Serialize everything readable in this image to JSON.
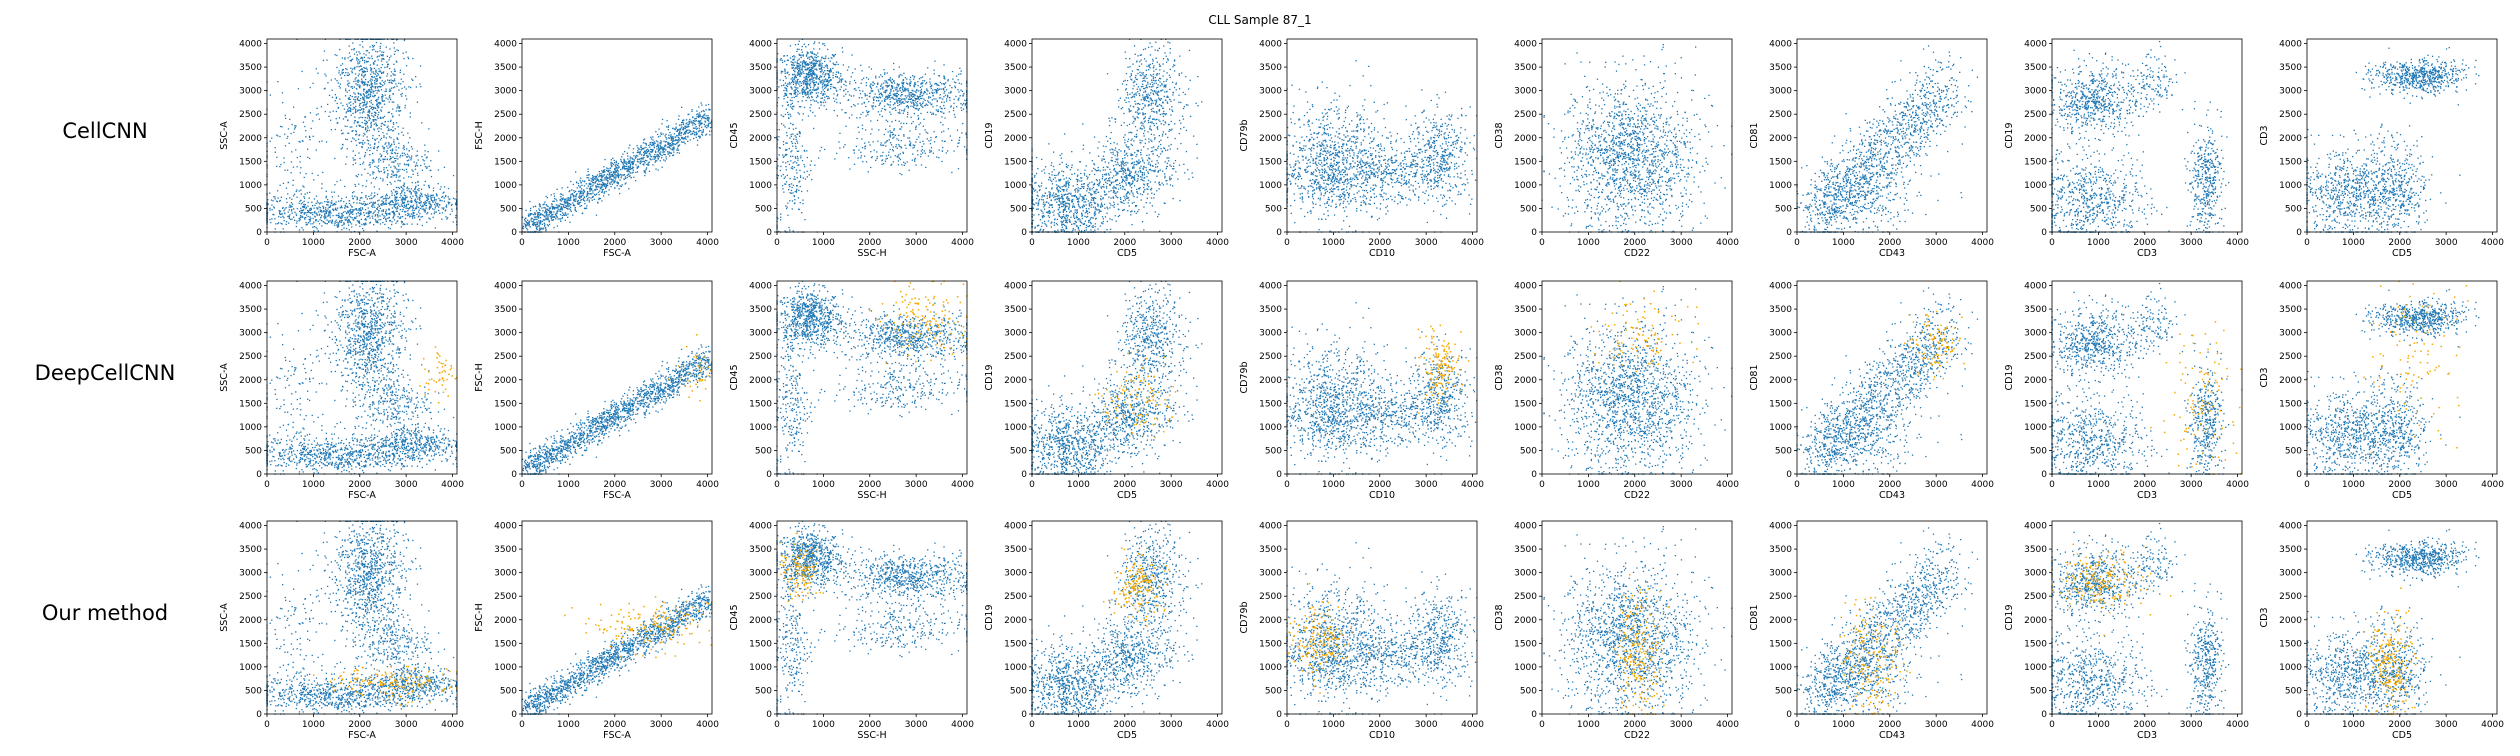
{
  "figure": {
    "title": "CLL Sample 87_1",
    "row_labels": [
      "CellCNN",
      "DeepCellCNN",
      "Our method"
    ]
  },
  "colors": {
    "all_cells": "#1f77b4",
    "selected_cells": "#f5a800",
    "axes": "#000000",
    "background": "#ffffff"
  },
  "chart_data": {
    "type": "scatter",
    "grid": false,
    "legend": "none",
    "xlim": [
      0,
      4096
    ],
    "ylim": [
      0,
      4096
    ],
    "tick_labels": [
      "0",
      "500",
      "1000",
      "1500",
      "2000",
      "2500",
      "3000",
      "3500",
      "4000"
    ],
    "x_tick_labels": [
      "0",
      "1000",
      "2000",
      "3000",
      "4000"
    ],
    "panels": [
      {
        "xlabel": "FSC-A",
        "ylabel": "SSC-A"
      },
      {
        "xlabel": "FSC-A",
        "ylabel": "FSC-H"
      },
      {
        "xlabel": "SSC-H",
        "ylabel": "CD45"
      },
      {
        "xlabel": "CD5",
        "ylabel": "CD19"
      },
      {
        "xlabel": "CD10",
        "ylabel": "CD79b"
      },
      {
        "xlabel": "CD22",
        "ylabel": "CD38"
      },
      {
        "xlabel": "CD43",
        "ylabel": "CD81"
      },
      {
        "xlabel": "CD3",
        "ylabel": "CD19"
      },
      {
        "xlabel": "CD5",
        "ylabel": "CD3"
      }
    ],
    "populations": [
      [
        {
          "x": 2200,
          "y": 2900,
          "sx": 400,
          "sy": 700,
          "n": 900
        },
        {
          "x": 1500,
          "y": 400,
          "sx": 900,
          "sy": 180,
          "n": 700
        },
        {
          "x": 3200,
          "y": 650,
          "sx": 500,
          "sy": 200,
          "n": 400
        },
        {
          "x": 2700,
          "y": 1500,
          "sx": 400,
          "sy": 300,
          "n": 250
        },
        {
          "x": 500,
          "y": 1500,
          "sx": 400,
          "sy": 800,
          "n": 150
        }
      ],
      [
        {
          "line": true,
          "x0": 100,
          "y0": 100,
          "x1": 4000,
          "y1": 2400,
          "spread": 160,
          "n": 1500
        }
      ],
      [
        {
          "x": 700,
          "y": 3300,
          "sx": 350,
          "sy": 300,
          "n": 700
        },
        {
          "x": 2800,
          "y": 2900,
          "sx": 700,
          "sy": 250,
          "n": 700
        },
        {
          "x": 2600,
          "y": 1800,
          "sx": 700,
          "sy": 250,
          "n": 250
        },
        {
          "x": 300,
          "y": 1500,
          "sx": 200,
          "sy": 900,
          "n": 250
        }
      ],
      [
        {
          "x": 800,
          "y": 600,
          "sx": 600,
          "sy": 450,
          "n": 900
        },
        {
          "x": 2200,
          "y": 1300,
          "sx": 450,
          "sy": 400,
          "n": 500
        },
        {
          "x": 2600,
          "y": 2900,
          "sx": 350,
          "sy": 500,
          "n": 500
        }
      ],
      [
        {
          "x": 1000,
          "y": 1400,
          "sx": 600,
          "sy": 600,
          "n": 1000
        },
        {
          "x": 3300,
          "y": 1600,
          "sx": 350,
          "sy": 500,
          "n": 450
        },
        {
          "x": 2200,
          "y": 1200,
          "sx": 500,
          "sy": 300,
          "n": 300
        }
      ],
      [
        {
          "x": 1900,
          "y": 1600,
          "sx": 700,
          "sy": 800,
          "n": 1500
        }
      ],
      [
        {
          "line": true,
          "x0": 300,
          "y0": 300,
          "x1": 3300,
          "y1": 3000,
          "spread": 420,
          "n": 1200
        },
        {
          "x": 1400,
          "y": 700,
          "sx": 600,
          "sy": 400,
          "n": 300
        }
      ],
      [
        {
          "x": 900,
          "y": 2800,
          "sx": 500,
          "sy": 350,
          "n": 600
        },
        {
          "x": 800,
          "y": 700,
          "sx": 600,
          "sy": 500,
          "n": 700
        },
        {
          "x": 3300,
          "y": 1100,
          "sx": 180,
          "sy": 600,
          "n": 400
        },
        {
          "x": 2200,
          "y": 3200,
          "sx": 250,
          "sy": 300,
          "n": 120
        }
      ],
      [
        {
          "x": 2400,
          "y": 3300,
          "sx": 500,
          "sy": 180,
          "n": 600
        },
        {
          "x": 1000,
          "y": 800,
          "sx": 600,
          "sy": 500,
          "n": 800
        },
        {
          "x": 2000,
          "y": 900,
          "sx": 300,
          "sy": 500,
          "n": 300
        }
      ]
    ],
    "selected": [
      [
        [],
        [
          {
            "x": 3700,
            "y": 2100,
            "sx": 200,
            "sy": 300,
            "n": 50
          }
        ],
        [
          {
            "x": 2700,
            "y": 650,
            "sx": 700,
            "sy": 180,
            "n": 160
          }
        ]
      ],
      [
        [],
        [
          {
            "x": 3750,
            "y": 2100,
            "sx": 200,
            "sy": 300,
            "n": 40
          }
        ],
        [
          {
            "x": 2800,
            "y": 1900,
            "sx": 700,
            "sy": 250,
            "n": 160
          }
        ]
      ],
      [
        [],
        [
          {
            "x": 3200,
            "y": 3300,
            "sx": 500,
            "sy": 400,
            "n": 140
          }
        ],
        [
          {
            "x": 500,
            "y": 3000,
            "sx": 200,
            "sy": 300,
            "n": 120
          }
        ]
      ],
      [
        [],
        [
          {
            "x": 2200,
            "y": 1600,
            "sx": 400,
            "sy": 350,
            "n": 110
          }
        ],
        [
          {
            "x": 2300,
            "y": 2700,
            "sx": 250,
            "sy": 300,
            "n": 170
          }
        ]
      ],
      [
        [],
        [
          {
            "x": 3300,
            "y": 2300,
            "sx": 200,
            "sy": 400,
            "n": 150
          }
        ],
        [
          {
            "x": 700,
            "y": 1600,
            "sx": 350,
            "sy": 400,
            "n": 190
          }
        ]
      ],
      [
        [],
        [
          {
            "x": 2100,
            "y": 2900,
            "sx": 500,
            "sy": 400,
            "n": 100
          }
        ],
        [
          {
            "x": 2100,
            "y": 1300,
            "sx": 250,
            "sy": 700,
            "n": 220
          }
        ]
      ],
      [
        [],
        [
          {
            "x": 3000,
            "y": 2700,
            "sx": 250,
            "sy": 350,
            "n": 100
          }
        ],
        [
          {
            "x": 1600,
            "y": 1100,
            "sx": 300,
            "sy": 600,
            "n": 180
          }
        ]
      ],
      [
        [],
        [
          {
            "x": 3200,
            "y": 1500,
            "sx": 400,
            "sy": 800,
            "n": 110
          }
        ],
        [
          {
            "x": 1000,
            "y": 2800,
            "sx": 450,
            "sy": 300,
            "n": 200
          }
        ]
      ],
      [
        [],
        [
          {
            "x": 2300,
            "y": 2500,
            "sx": 500,
            "sy": 800,
            "n": 100
          }
        ],
        [
          {
            "x": 1800,
            "y": 1000,
            "sx": 250,
            "sy": 600,
            "n": 210
          }
        ]
      ]
    ]
  }
}
